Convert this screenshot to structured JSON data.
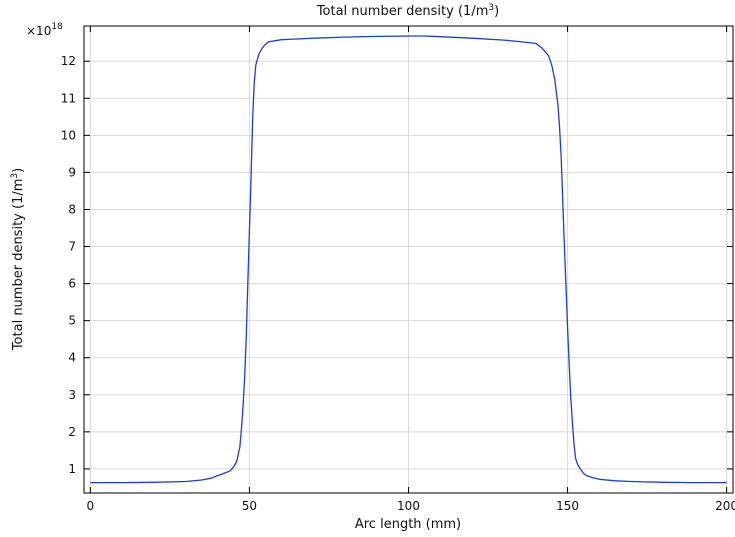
{
  "chart_data": {
    "type": "line",
    "title": "Total number density (1/m",
    "title_sup": "3",
    "title_end": ")",
    "xlabel": "Arc length (mm)",
    "ylabel": "Total number density (1/m",
    "ylabel_sup": "3",
    "ylabel_end": ")",
    "y_multiplier": "×10",
    "y_multiplier_exp": "18",
    "xlim": [
      -2,
      202
    ],
    "ylim": [
      0.35,
      12.95
    ],
    "x_ticks": [
      0,
      50,
      100,
      150,
      200
    ],
    "x_tick_labels": [
      "0",
      "50",
      "100",
      "150",
      "200"
    ],
    "y_ticks": [
      1,
      2,
      3,
      4,
      5,
      6,
      7,
      8,
      9,
      10,
      11,
      12
    ],
    "y_tick_labels": [
      "1",
      "2",
      "3",
      "4",
      "5",
      "6",
      "7",
      "8",
      "9",
      "10",
      "11",
      "12"
    ],
    "grid": true,
    "series": [
      {
        "color": "#1a3fd6",
        "x": [
          0,
          10,
          20,
          30,
          35,
          38,
          40,
          42,
          44,
          45,
          46,
          47,
          47.5,
          48,
          48.5,
          49,
          49.5,
          50,
          50.5,
          51,
          51.5,
          52,
          52.5,
          53,
          54,
          55,
          56,
          58,
          60,
          65,
          70,
          80,
          90,
          100,
          105,
          110,
          120,
          130,
          135,
          140,
          142,
          144,
          145,
          146,
          147,
          147.5,
          148,
          148.5,
          149,
          149.5,
          150,
          150.5,
          151,
          151.5,
          152,
          152.5,
          153,
          154,
          155,
          156,
          158,
          160,
          165,
          170,
          180,
          190,
          200
        ],
        "y": [
          0.63,
          0.63,
          0.64,
          0.66,
          0.7,
          0.75,
          0.82,
          0.88,
          0.95,
          1.05,
          1.2,
          1.6,
          2.1,
          2.7,
          3.5,
          4.6,
          6.0,
          7.4,
          8.8,
          10.4,
          11.4,
          11.9,
          12.05,
          12.2,
          12.35,
          12.45,
          12.52,
          12.55,
          12.58,
          12.6,
          12.62,
          12.65,
          12.67,
          12.68,
          12.68,
          12.66,
          12.62,
          12.57,
          12.53,
          12.48,
          12.35,
          12.15,
          11.9,
          11.5,
          10.8,
          10.2,
          9.4,
          8.2,
          7.0,
          5.9,
          4.8,
          3.8,
          2.9,
          2.3,
          1.7,
          1.3,
          1.15,
          1.0,
          0.88,
          0.82,
          0.76,
          0.72,
          0.68,
          0.66,
          0.64,
          0.63,
          0.63
        ]
      }
    ]
  }
}
